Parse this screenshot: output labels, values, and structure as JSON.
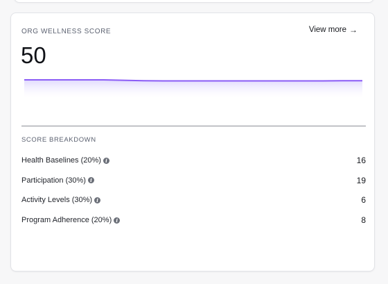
{
  "card": {
    "title": "ORG WELLNESS SCORE",
    "view_more_label": "View more",
    "view_more_icon": "arrow-right-icon",
    "score": "50"
  },
  "sparkline": {
    "color": "#8b5cf6",
    "fill_color": "#ede9fe",
    "values": [
      50,
      50,
      50,
      50,
      50,
      49.8,
      49.6,
      49.5,
      49.5,
      49.5,
      49.5,
      49.5,
      49.5,
      49.5,
      49.5,
      49.5,
      49.6,
      49.6
    ],
    "y_min": 40,
    "y_max": 60
  },
  "breakdown": {
    "title": "SCORE BREAKDOWN",
    "items": [
      {
        "label": "Health Baselines (20%)",
        "value": "16"
      },
      {
        "label": "Participation (30%)",
        "value": "19"
      },
      {
        "label": "Activity Levels (30%)",
        "value": "6"
      },
      {
        "label": "Program Adherence (20%)",
        "value": "8"
      }
    ],
    "info_icon": "info-icon",
    "info_glyph": "i"
  }
}
